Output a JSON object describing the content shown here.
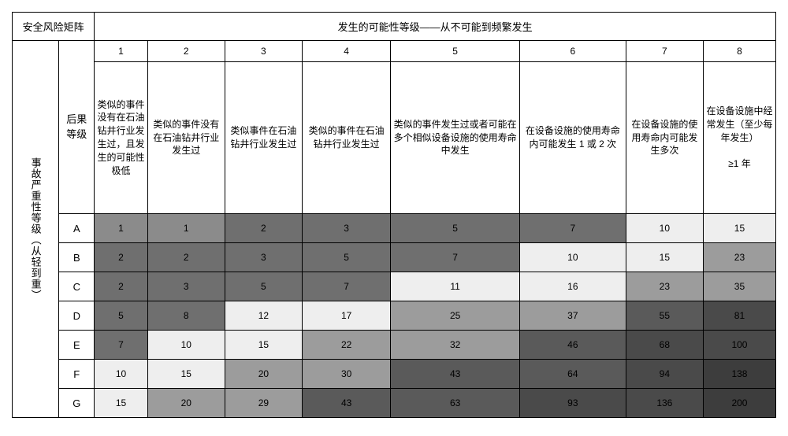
{
  "title": "安全风险矩阵",
  "probHeader": "发生的可能性等级——从不可能到频繁发生",
  "sideHeader": "事故严重性等级（从轻到重）",
  "conseqLabel": "后果等级",
  "colNums": [
    "1",
    "2",
    "3",
    "4",
    "5",
    "6",
    "7",
    "8"
  ],
  "colDescs": [
    "类似的事件没有在石油钻井行业发生过，且发生的可能性极低",
    "类似的事件没有在石油钻井行业发生过",
    "类似事件在石油钻井行业发生过",
    "类似的事件在石油钻井行业发生过",
    "类似的事件发生过或者可能在多个相似设备设施的使用寿命中发生",
    "在设备设施的使用寿命内可能发生 1 或 2 次",
    "在设备设施的使用寿命内可能发生多次",
    "在设备设施中经常发生（至少每年发生）\n\n≥1 年"
  ],
  "rowLabels": [
    "A",
    "B",
    "C",
    "D",
    "E",
    "F",
    "G"
  ],
  "matrix": [
    [
      1,
      1,
      2,
      3,
      5,
      7,
      10,
      15
    ],
    [
      2,
      2,
      3,
      5,
      7,
      10,
      15,
      23
    ],
    [
      2,
      3,
      5,
      7,
      11,
      16,
      23,
      35
    ],
    [
      5,
      8,
      12,
      17,
      25,
      37,
      55,
      81
    ],
    [
      7,
      10,
      15,
      22,
      32,
      46,
      68,
      100
    ],
    [
      10,
      15,
      20,
      30,
      43,
      64,
      94,
      138
    ],
    [
      15,
      20,
      29,
      43,
      63,
      93,
      136,
      200
    ]
  ],
  "colors": {
    "c1": "#8b8b8b",
    "c2": "#6f6f6f",
    "c3": "#eeeeee",
    "c4": "#9c9c9c",
    "c5": "#5a5a5a",
    "c6": "#4a4a4a",
    "c7": "#3d3d3d",
    "c8": "#ffffff"
  },
  "cellColors": [
    [
      "c1",
      "c1",
      "c2",
      "c2",
      "c2",
      "c2",
      "c3",
      "c3"
    ],
    [
      "c2",
      "c2",
      "c2",
      "c2",
      "c2",
      "c3",
      "c3",
      "c4"
    ],
    [
      "c2",
      "c2",
      "c2",
      "c2",
      "c3",
      "c3",
      "c4",
      "c4"
    ],
    [
      "c2",
      "c2",
      "c3",
      "c3",
      "c4",
      "c4",
      "c5",
      "c6"
    ],
    [
      "c2",
      "c3",
      "c3",
      "c4",
      "c4",
      "c5",
      "c6",
      "c6"
    ],
    [
      "c3",
      "c3",
      "c4",
      "c4",
      "c5",
      "c5",
      "c6",
      "c7"
    ],
    [
      "c3",
      "c4",
      "c4",
      "c5",
      "c5",
      "c6",
      "c6",
      "c7"
    ]
  ],
  "colWidths": {
    "side": 58,
    "conseq": 44,
    "c1": 66,
    "c2": 96,
    "c3": 96,
    "c4": 110,
    "c5": 160,
    "c6": 132,
    "c7": 96,
    "c8": 90
  }
}
